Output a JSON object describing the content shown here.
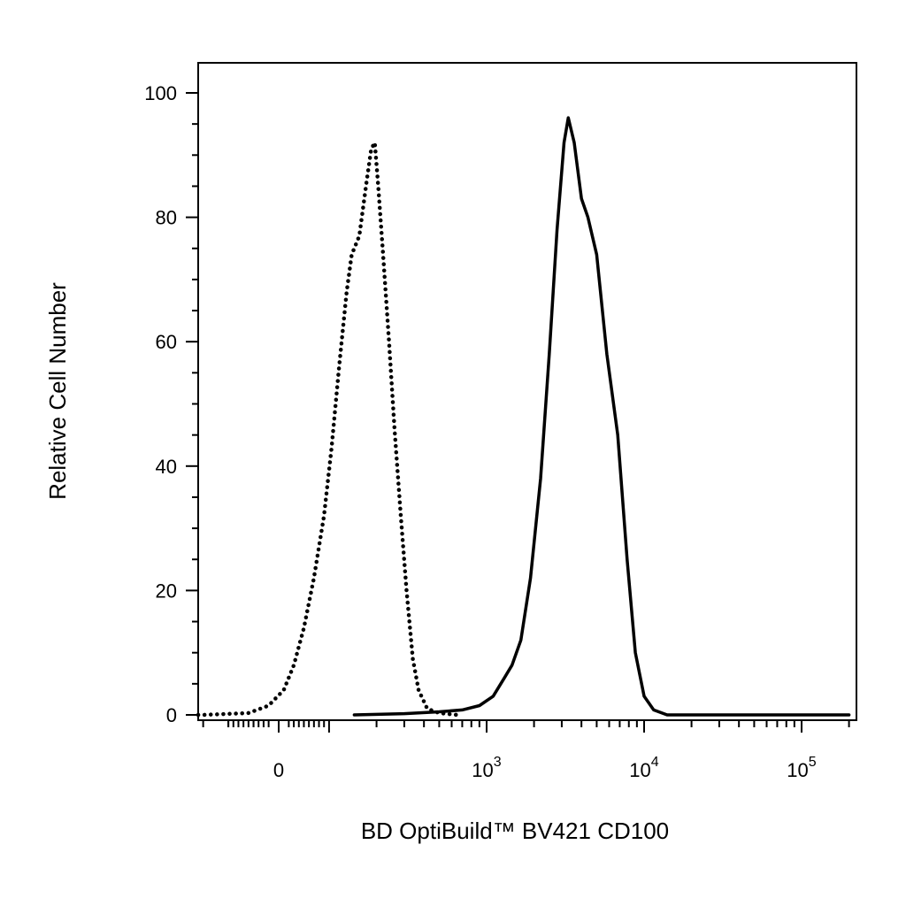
{
  "chart_data": {
    "type": "line",
    "title": "",
    "xlabel": "BD OptiBuild™ BV421 CD100",
    "ylabel": "Relative Cell Number",
    "x_scale": "biexponential",
    "xlim": [
      -300,
      200000
    ],
    "ylim": [
      0,
      105
    ],
    "grid": false,
    "legend": "none",
    "y_ticks": [
      {
        "value": 0,
        "label": "0"
      },
      {
        "value": 20,
        "label": "20"
      },
      {
        "value": 40,
        "label": "40"
      },
      {
        "value": 60,
        "label": "60"
      },
      {
        "value": 80,
        "label": "80"
      },
      {
        "value": 100,
        "label": "100"
      }
    ],
    "x_ticks": [
      {
        "value": 0,
        "base": "0",
        "exp": ""
      },
      {
        "value": 1000,
        "base": "10",
        "exp": "3"
      },
      {
        "value": 10000,
        "base": "10",
        "exp": "4"
      },
      {
        "value": 100000,
        "base": "10",
        "exp": "5"
      }
    ],
    "series": [
      {
        "style": "dotted",
        "color": "#000000",
        "points": [
          [
            -300,
            0
          ],
          [
            -150,
            0
          ],
          [
            -60,
            0.3
          ],
          [
            -20,
            1.5
          ],
          [
            10,
            4
          ],
          [
            30,
            8
          ],
          [
            50,
            14
          ],
          [
            70,
            22
          ],
          [
            90,
            32
          ],
          [
            105,
            43
          ],
          [
            120,
            56
          ],
          [
            135,
            68
          ],
          [
            145,
            74
          ],
          [
            160,
            77
          ],
          [
            175,
            86
          ],
          [
            185,
            91
          ],
          [
            195,
            92
          ],
          [
            205,
            85
          ],
          [
            220,
            74
          ],
          [
            240,
            60
          ],
          [
            260,
            46
          ],
          [
            285,
            32
          ],
          [
            310,
            20
          ],
          [
            340,
            9
          ],
          [
            370,
            4
          ],
          [
            420,
            1
          ],
          [
            500,
            0.3
          ],
          [
            650,
            0
          ]
        ]
      },
      {
        "style": "solid",
        "color": "#000000",
        "points": [
          [
            150,
            0
          ],
          [
            300,
            0.2
          ],
          [
            500,
            0.5
          ],
          [
            700,
            0.8
          ],
          [
            900,
            1.5
          ],
          [
            1100,
            3
          ],
          [
            1300,
            6
          ],
          [
            1450,
            8
          ],
          [
            1650,
            12
          ],
          [
            1900,
            22
          ],
          [
            2200,
            38
          ],
          [
            2500,
            58
          ],
          [
            2800,
            78
          ],
          [
            3100,
            92
          ],
          [
            3300,
            96
          ],
          [
            3600,
            92
          ],
          [
            4000,
            83
          ],
          [
            4400,
            80
          ],
          [
            5000,
            74
          ],
          [
            5800,
            58
          ],
          [
            6800,
            45
          ],
          [
            7800,
            25
          ],
          [
            8800,
            10
          ],
          [
            10000,
            3
          ],
          [
            11500,
            0.8
          ],
          [
            14000,
            0
          ],
          [
            200000,
            0
          ]
        ]
      }
    ]
  }
}
